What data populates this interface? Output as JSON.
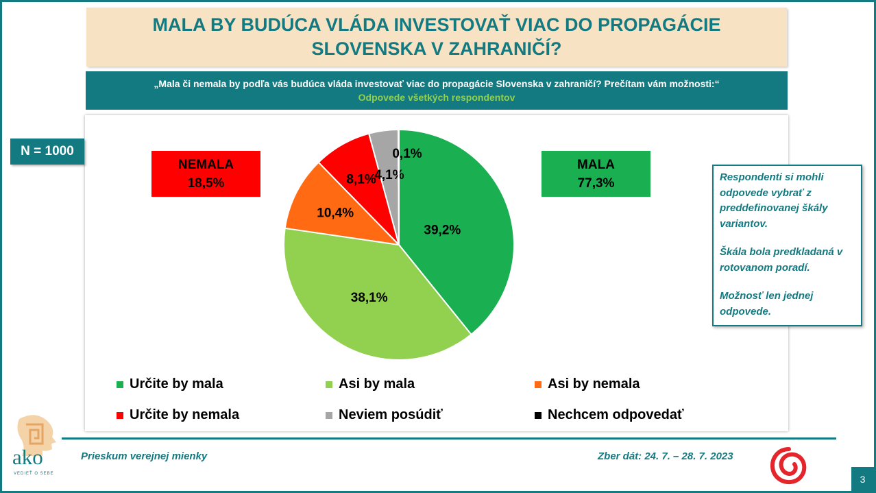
{
  "title": "MALA BY BUDÚCA VLÁDA INVESTOVAŤ VIAC DO PROPAGÁCIE SLOVENSKA V ZAHRANIČÍ?",
  "question": "„Mala či nemala by podľa vás budúca vláda investovať viac do propagácie Slovenska v zahraničí? Prečítam vám možnosti:“",
  "respondents_note": "Odpovede všetkých respondentov",
  "sample": "N = 1000",
  "groups": {
    "nemala": {
      "label": "NEMALA",
      "value": "18,5%"
    },
    "mala": {
      "label": "MALA",
      "value": "77,3%"
    }
  },
  "note": {
    "p1": "Respondenti si mohli odpovede vybrať z preddefinovanej škály variantov.",
    "p2": "Škála bola predkladaná v rotovanom poradí.",
    "p3": "Možnosť len jednej odpovede."
  },
  "footer": {
    "left": "Prieskum verejnej mienky",
    "right": "Zber dát: 24. 7. – 28. 7. 2023",
    "page": "3",
    "logo_text": "ako",
    "logo_tagline": "VEDIEŤ O SEBE"
  },
  "colors": {
    "teal": "#127a80",
    "title_bg": "#f8e2c4",
    "light_green": "#92d050",
    "red": "#ff0000",
    "green": "#1ab051",
    "orange": "#ff6a13",
    "gray": "#a6a6a6",
    "black": "#000000"
  },
  "chart_data": {
    "type": "pie",
    "start_angle_deg": 0,
    "direction": "clockwise",
    "slices": [
      {
        "label": "Určite by mala",
        "value": 39.2,
        "display": "39,2%",
        "color": "#1ab051"
      },
      {
        "label": "Asi by mala",
        "value": 38.1,
        "display": "38,1%",
        "color": "#92d050"
      },
      {
        "label": "Asi by nemala",
        "value": 10.4,
        "display": "10,4%",
        "color": "#ff6a13"
      },
      {
        "label": "Určite by nemala",
        "value": 8.1,
        "display": "8,1%",
        "color": "#ff0000"
      },
      {
        "label": "Neviem posúdiť",
        "value": 4.1,
        "display": "4,1%",
        "color": "#a6a6a6"
      },
      {
        "label": "Nechcem odpovedať",
        "value": 0.1,
        "display": "0,1%",
        "color": "#000000"
      }
    ],
    "legend_position": "bottom"
  }
}
